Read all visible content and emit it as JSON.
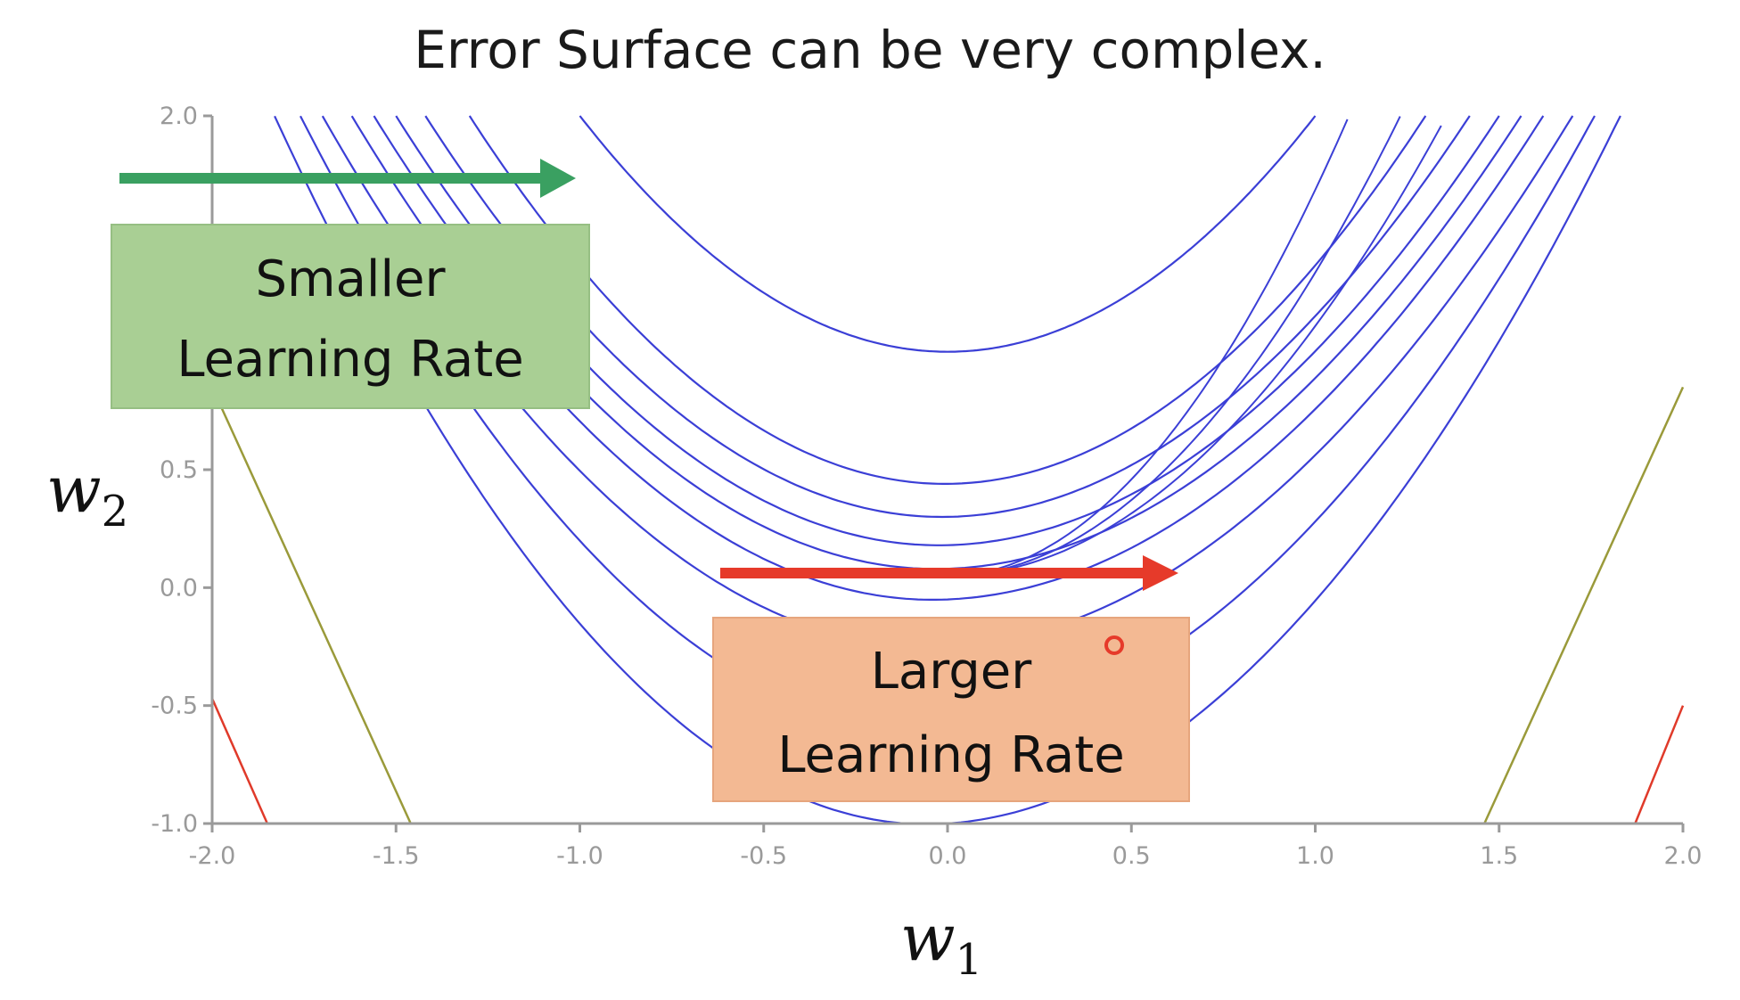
{
  "chart_data": {
    "type": "contour",
    "title": "Error Surface can be very complex.",
    "xlabel": "w",
    "xlabel_sub": "1",
    "ylabel": "w",
    "ylabel_sub": "2",
    "xlim": [
      -2.0,
      2.0
    ],
    "ylim": [
      -1.0,
      2.0
    ],
    "x_ticks": [
      "-2.0",
      "-1.5",
      "-1.0",
      "-0.5",
      "0.0",
      "0.5",
      "1.0",
      "1.5",
      "2.0"
    ],
    "y_ticks": [
      "-1.0",
      "-0.5",
      "0.0",
      "0.5",
      "2.0"
    ],
    "contour_levels_blue": [
      {
        "min_y": 1.0,
        "halfwidth_at_top": 1.0
      },
      {
        "min_y": 0.44,
        "halfwidth_at_top": 1.3
      },
      {
        "min_y": 0.3,
        "halfwidth_at_top": 1.42
      },
      {
        "min_y": 0.18,
        "halfwidth_at_top": 1.5
      },
      {
        "min_y": 0.08,
        "halfwidth_at_top": 1.56
      },
      {
        "min_y": -0.05,
        "halfwidth_at_top": 1.62
      },
      {
        "min_y": -0.25,
        "halfwidth_at_top": 1.7
      },
      {
        "min_y": -0.6,
        "halfwidth_at_top": 1.76
      },
      {
        "min_y": -1.0,
        "halfwidth_at_top": 1.83
      }
    ],
    "annotations": {
      "smaller": {
        "line1": "Smaller",
        "line2": "Learning Rate",
        "color": "#a9cf94",
        "arrow_color": "#3aa061"
      },
      "larger": {
        "line1": "Larger",
        "line2": "Learning Rate",
        "color": "#f3b993",
        "arrow_color": "#e63a2a"
      }
    },
    "colors": {
      "contour": "#3b3fd6",
      "olive": "#9a9a3a",
      "red": "#e03a2a"
    }
  }
}
